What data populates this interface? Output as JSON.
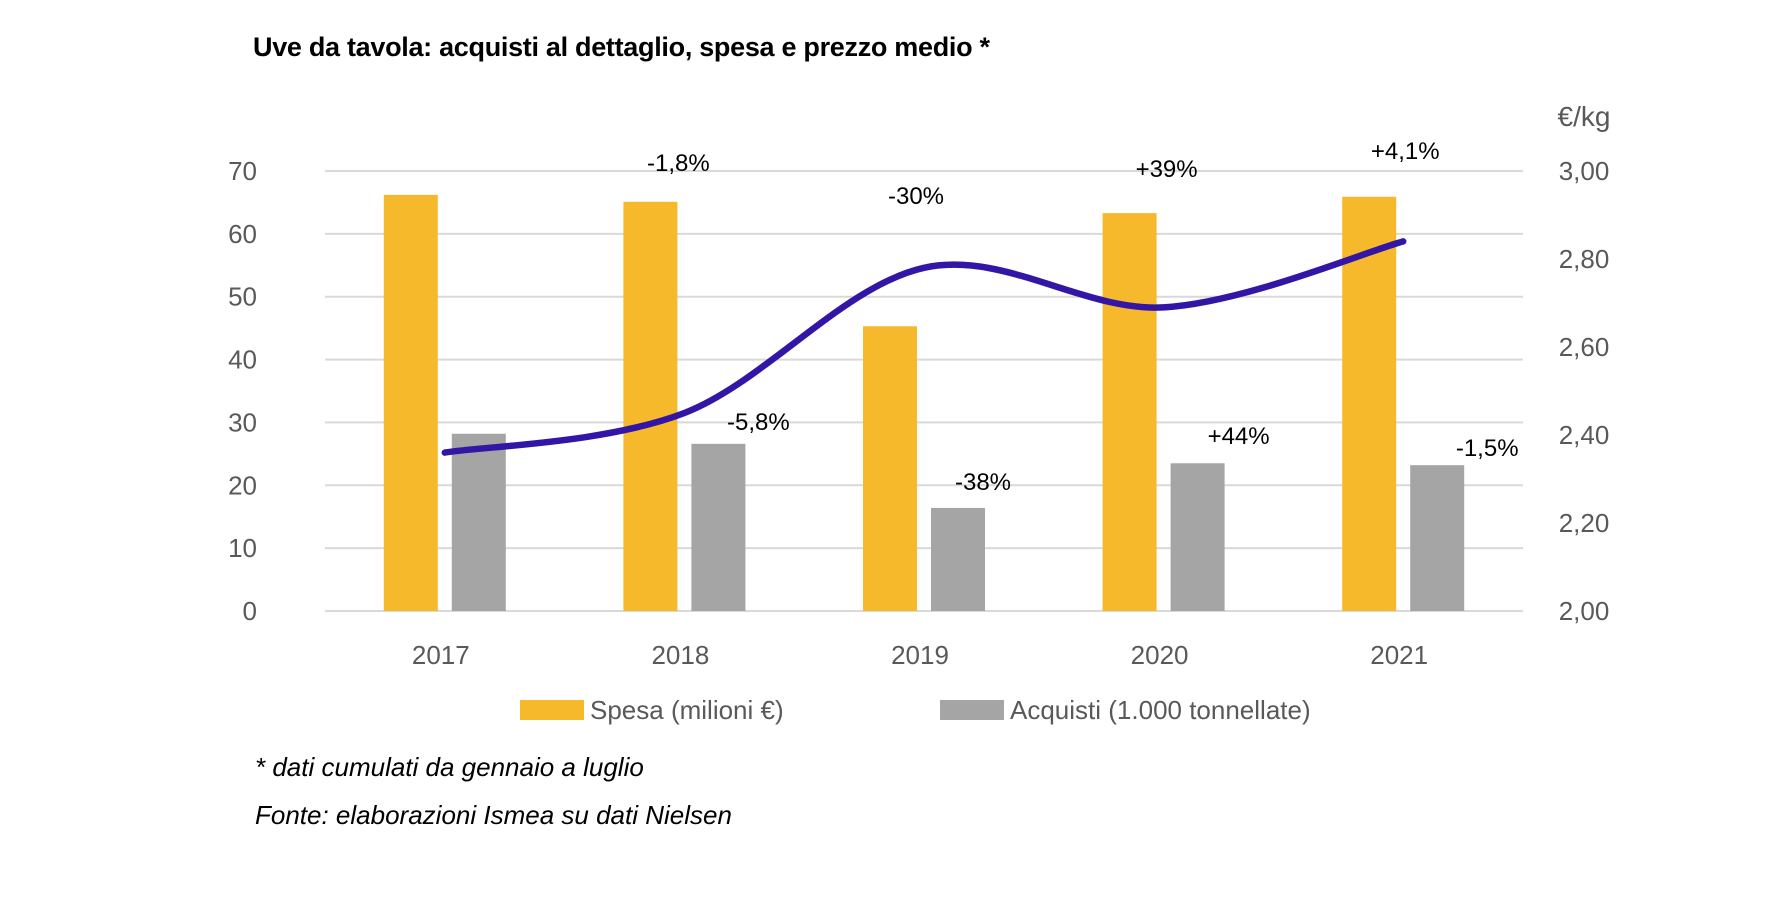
{
  "chart_data": {
    "type": "bar",
    "title": "Uve da tavola: acquisti al dettaglio, spesa e prezzo medio *",
    "categories": [
      "2017",
      "2018",
      "2019",
      "2020",
      "2021"
    ],
    "series": [
      {
        "name": "Spesa (milioni €)",
        "type": "bar",
        "axis": "left",
        "color": "#F6B92B",
        "values": [
          66.2,
          65.1,
          45.3,
          63.3,
          65.9
        ],
        "labels": [
          "",
          "-1,8%",
          "-30%",
          "+39%",
          "+4,1%"
        ]
      },
      {
        "name": "Acquisti (1.000 tonnellate)",
        "type": "bar",
        "axis": "left",
        "color": "#A5A5A5",
        "values": [
          28.2,
          26.6,
          16.4,
          23.5,
          23.2
        ],
        "labels": [
          "",
          "-5,8%",
          "-38%",
          "+44%",
          "-1,5%"
        ]
      },
      {
        "name": "Prezzo medio (€/kg)",
        "type": "line",
        "smooth": true,
        "axis": "right",
        "color": "#3316A6",
        "values": [
          2.36,
          2.45,
          2.78,
          2.69,
          2.84
        ]
      }
    ],
    "y_left": {
      "label": "",
      "ylim": [
        0,
        70
      ],
      "ticks": [
        0,
        10,
        20,
        30,
        40,
        50,
        60,
        70
      ],
      "tick_labels": [
        "0",
        "10",
        "20",
        "30",
        "40",
        "50",
        "60",
        "70"
      ]
    },
    "y_right": {
      "label": "€/kg",
      "ylim": [
        2.0,
        3.0
      ],
      "ticks": [
        2.0,
        2.2,
        2.4,
        2.6,
        2.8,
        3.0
      ],
      "tick_labels": [
        "2,00",
        "2,20",
        "2,40",
        "2,60",
        "2,80",
        "3,00"
      ]
    },
    "grid": true,
    "legend_position": "bottom",
    "xlabel": "",
    "ylabel": ""
  },
  "footnotes": {
    "note": "* dati cumulati da gennaio a luglio",
    "source": "Fonte: elaborazioni Ismea su dati Nielsen"
  }
}
